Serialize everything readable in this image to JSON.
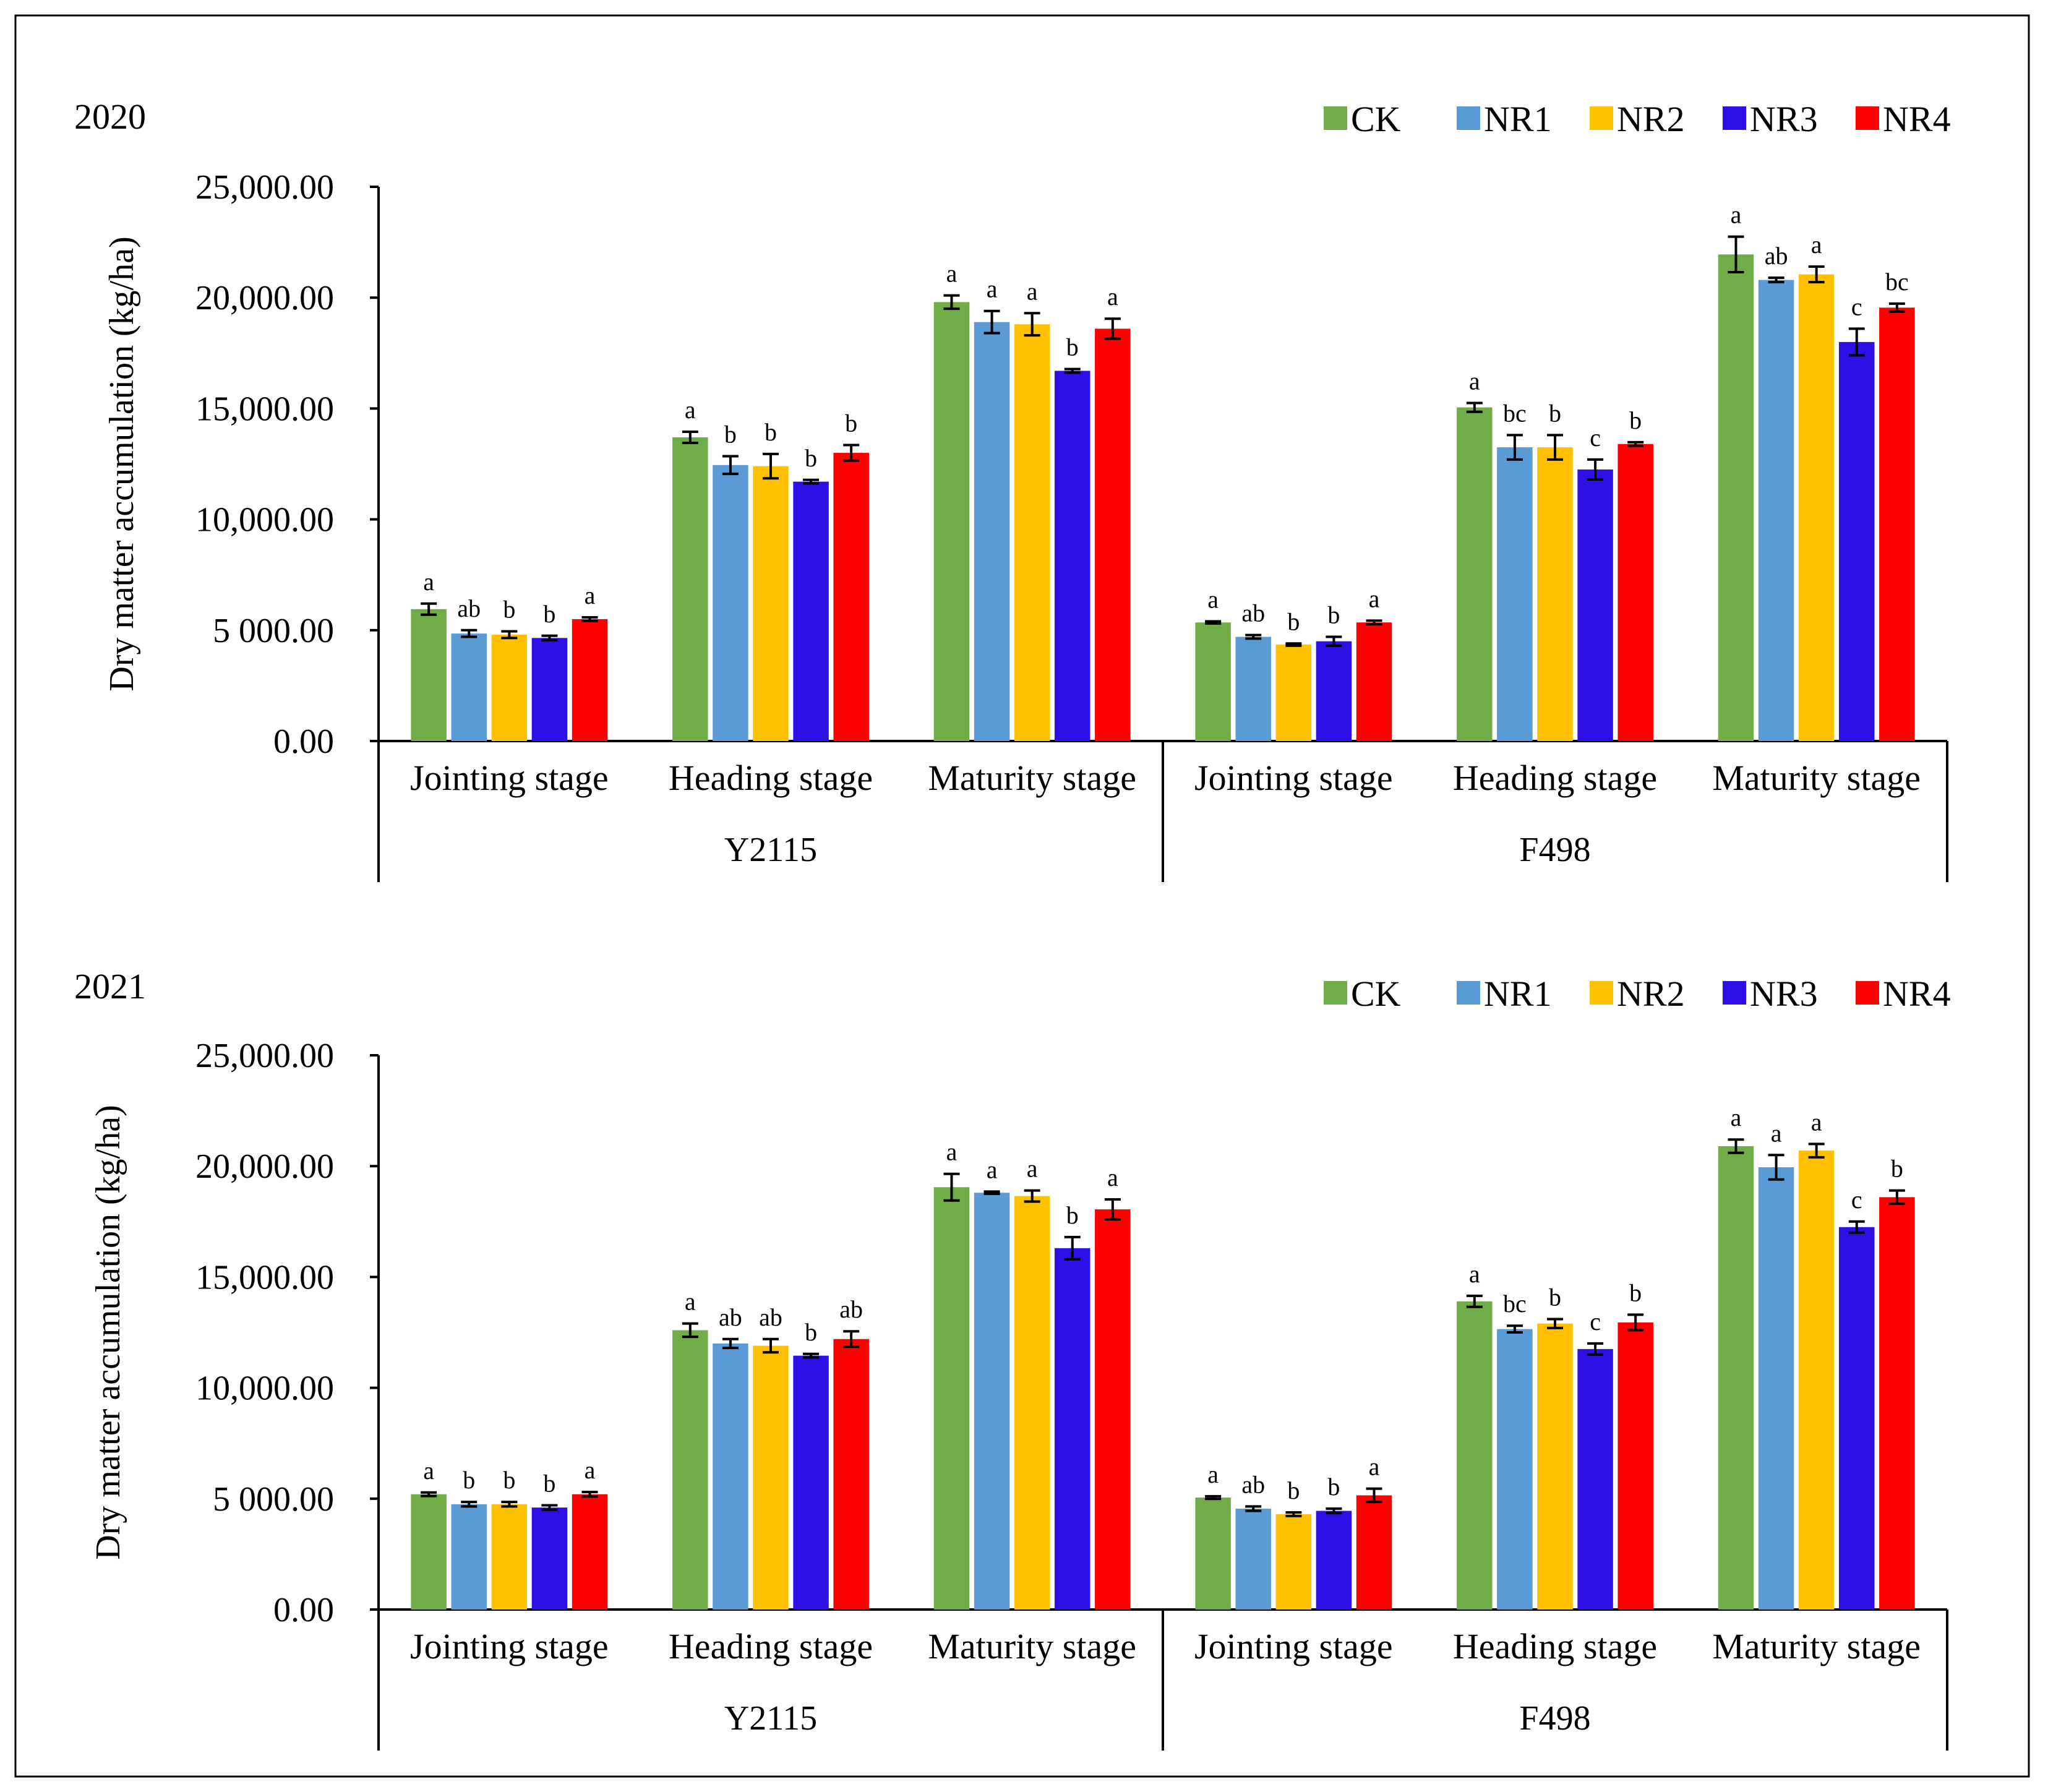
{
  "colors": {
    "CK": "#70ad47",
    "NR1": "#5b9bd5",
    "NR2": "#ffc000",
    "NR3": "#2e0fe6",
    "NR4": "#ff0000"
  },
  "chart_data": [
    {
      "type": "bar",
      "title": "2020",
      "ylabel": "Dry matter accumulation (kg/ha)",
      "ylim": [
        0,
        25000
      ],
      "yticks": [
        "0.00",
        "5 000.00",
        "10,000.00",
        "15,000.00",
        "20,000.00",
        "25,000.00"
      ],
      "legend": [
        "CK",
        "NR1",
        "NR2",
        "NR3",
        "NR4"
      ],
      "legend_position": "top-right",
      "groups": [
        {
          "name": "Y2115",
          "stages": [
            {
              "name": "Jointing stage",
              "values": [
                5950,
                4850,
                4800,
                4650,
                5500
              ],
              "errors": [
                250,
                150,
                150,
                100,
                80
              ],
              "sig": [
                "a",
                "ab",
                "b",
                "b",
                "a"
              ]
            },
            {
              "name": "Heading stage",
              "values": [
                13700,
                12450,
                12400,
                11700,
                13000
              ],
              "errors": [
                250,
                400,
                550,
                80,
                350
              ],
              "sig": [
                "a",
                "b",
                "b",
                "b",
                "b"
              ]
            },
            {
              "name": "Maturity stage",
              "values": [
                19800,
                18900,
                18800,
                16700,
                18600
              ],
              "errors": [
                300,
                500,
                500,
                80,
                450
              ],
              "sig": [
                "a",
                "a",
                "a",
                "b",
                "a"
              ]
            }
          ]
        },
        {
          "name": "F498",
          "stages": [
            {
              "name": "Jointing stage",
              "values": [
                5350,
                4700,
                4350,
                4500,
                5350
              ],
              "errors": [
                50,
                80,
                50,
                200,
                80
              ],
              "sig": [
                "a",
                "ab",
                "b",
                "b",
                "a"
              ]
            },
            {
              "name": "Heading stage",
              "values": [
                15050,
                13250,
                13250,
                12250,
                13400
              ],
              "errors": [
                200,
                550,
                550,
                450,
                80
              ],
              "sig": [
                "a",
                "bc",
                "b",
                "c",
                "b"
              ]
            },
            {
              "name": "Maturity stage",
              "values": [
                21950,
                20800,
                21050,
                18000,
                19550
              ],
              "errors": [
                800,
                100,
                350,
                600,
                180
              ],
              "sig": [
                "a",
                "ab",
                "a",
                "c",
                "bc"
              ]
            }
          ]
        }
      ]
    },
    {
      "type": "bar",
      "title": "2021",
      "ylabel": "Dry matter accumulation (kg/ha)",
      "ylim": [
        0,
        25000
      ],
      "yticks": [
        "0.00",
        "5 000.00",
        "10,000.00",
        "15,000.00",
        "20,000.00",
        "25,000.00"
      ],
      "legend": [
        "CK",
        "NR1",
        "NR2",
        "NR3",
        "NR4"
      ],
      "legend_position": "top-right",
      "groups": [
        {
          "name": "Y2115",
          "stages": [
            {
              "name": "Jointing stage",
              "values": [
                5200,
                4750,
                4750,
                4600,
                5200
              ],
              "errors": [
                80,
                100,
                100,
                100,
                100
              ],
              "sig": [
                "a",
                "b",
                "b",
                "b",
                "a"
              ]
            },
            {
              "name": "Heading stage",
              "values": [
                12600,
                12000,
                11900,
                11450,
                12200
              ],
              "errors": [
                300,
                200,
                300,
                80,
                350
              ],
              "sig": [
                "a",
                "ab",
                "ab",
                "b",
                "ab"
              ]
            },
            {
              "name": "Maturity stage",
              "values": [
                19050,
                18800,
                18650,
                16300,
                18050
              ],
              "errors": [
                600,
                50,
                250,
                500,
                450
              ],
              "sig": [
                "a",
                "a",
                "a",
                "b",
                "a"
              ]
            }
          ]
        },
        {
          "name": "F498",
          "stages": [
            {
              "name": "Jointing stage",
              "values": [
                5050,
                4550,
                4300,
                4450,
                5150
              ],
              "errors": [
                60,
                100,
                80,
                100,
                300
              ],
              "sig": [
                "a",
                "ab",
                "b",
                "b",
                "a"
              ]
            },
            {
              "name": "Heading stage",
              "values": [
                13900,
                12650,
                12900,
                11750,
                12950
              ],
              "errors": [
                250,
                150,
                200,
                250,
                350
              ],
              "sig": [
                "a",
                "bc",
                "b",
                "c",
                "b"
              ]
            },
            {
              "name": "Maturity stage",
              "values": [
                20900,
                19950,
                20700,
                17250,
                18600
              ],
              "errors": [
                300,
                550,
                300,
                250,
                300
              ],
              "sig": [
                "a",
                "a",
                "a",
                "c",
                "b"
              ]
            }
          ]
        }
      ]
    }
  ]
}
